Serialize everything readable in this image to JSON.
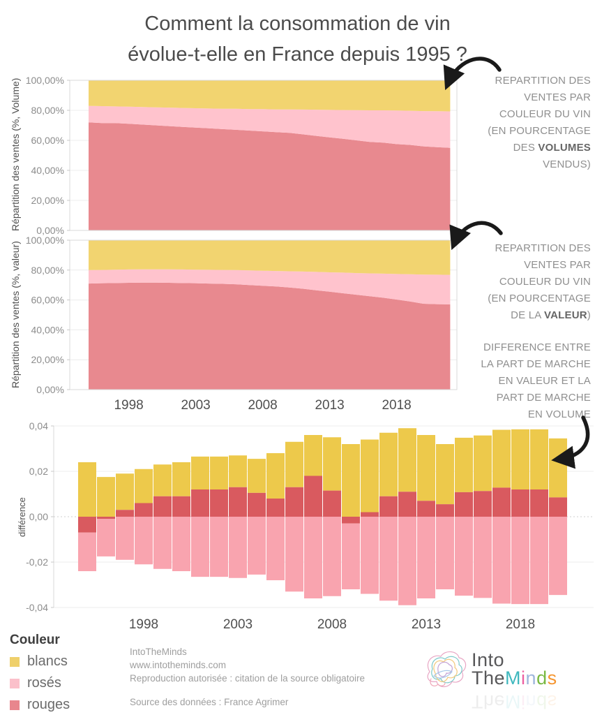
{
  "title": {
    "line1": "Comment la consommation de vin",
    "line2": "évolue-t-elle en France depuis 1995 ?"
  },
  "annotations": {
    "volume": {
      "l1": "REPARTITION DES",
      "l2": "VENTES PAR",
      "l3": "COULEUR DU VIN",
      "l4": "(EN POURCENTAGE",
      "l5_pre": "DES ",
      "l5_bold": "VOLUMES",
      "l6": "VENDUS)"
    },
    "valeur": {
      "l1": "REPARTITION DES",
      "l2": "VENTES PAR",
      "l3": "COULEUR DU VIN",
      "l4": "(EN POURCENTAGE",
      "l5_pre": "DE LA ",
      "l5_bold": "VALEUR",
      "l5_post": ")"
    },
    "difference": {
      "l1": "DIFFERENCE ENTRE",
      "l2": "LA PART DE MARCHE",
      "l3": "EN VALEUR ET LA",
      "l4": "PART DE MARCHE",
      "l5": "EN VOLUME"
    }
  },
  "legend": {
    "title": "Couleur",
    "items": [
      {
        "label": "blancs",
        "color": "#EFD06B"
      },
      {
        "label": "rosés",
        "color": "#FBC0CA"
      },
      {
        "label": "rouges",
        "color": "#E8868D"
      }
    ]
  },
  "footer": {
    "line1": "IntoTheMinds",
    "line2": "www.intotheminds.com",
    "line3": "Reproduction autorisée : citation de la source obligatoire",
    "source": "Source des données : France Agrimer"
  },
  "logo": {
    "word1": "Into",
    "word2": "The",
    "letters": [
      {
        "ch": "M",
        "color": "#3FB8BE"
      },
      {
        "ch": "i",
        "color": "#EC5FA1"
      },
      {
        "ch": "n",
        "color": "#9FB6DC"
      },
      {
        "ch": "d",
        "color": "#79B943"
      },
      {
        "ch": "s",
        "color": "#F5952F"
      }
    ]
  },
  "chart_data": [
    {
      "id": "volume",
      "type": "area",
      "ylabel": "Répartition des ventes (%, Volume)",
      "ylim": [
        0,
        100
      ],
      "unit": "percent of volumes sold",
      "yticks": [
        "100,00%",
        "80,00%",
        "60,00%",
        "40,00%",
        "20,00%",
        "0,00%"
      ],
      "ytick_values": [
        100,
        80,
        60,
        40,
        20,
        0
      ],
      "xticks": [
        1998,
        2003,
        2008,
        2013,
        2018
      ],
      "years": [
        1995,
        1996,
        1997,
        1998,
        1999,
        2000,
        2001,
        2002,
        2003,
        2004,
        2005,
        2006,
        2007,
        2008,
        2009,
        2010,
        2011,
        2012,
        2013,
        2014,
        2015,
        2016,
        2017,
        2018,
        2019,
        2020,
        2021,
        2022
      ],
      "series": [
        {
          "name": "rouges",
          "color": "#E8898F",
          "values": [
            72,
            71.5,
            71.5,
            71,
            70.5,
            70,
            69.5,
            69,
            68.5,
            68,
            67.5,
            67,
            66.5,
            66,
            65.5,
            65,
            64,
            63,
            62,
            61,
            60,
            59,
            58.5,
            57.5,
            57,
            56,
            55.5,
            55
          ]
        },
        {
          "name": "rosés",
          "color": "#FFC3CD",
          "values": [
            11,
            11.3,
            11.1,
            11.4,
            11.7,
            12,
            12.3,
            12.6,
            12.9,
            13.2,
            13.5,
            14,
            14.3,
            14.8,
            15.1,
            15.6,
            16.5,
            17.4,
            18.3,
            19.2,
            20.1,
            21,
            21.5,
            22.4,
            22.7,
            23.5,
            23.9,
            24.3
          ]
        },
        {
          "name": "blancs",
          "color": "#F2D470",
          "values": [
            17,
            17.2,
            17.4,
            17.6,
            17.8,
            18,
            18.2,
            18.4,
            18.6,
            18.8,
            19,
            19,
            19.2,
            19.2,
            19.4,
            19.4,
            19.5,
            19.6,
            19.7,
            19.8,
            19.9,
            20,
            20,
            20.1,
            20.3,
            20.5,
            20.6,
            20.7
          ]
        }
      ]
    },
    {
      "id": "valeur",
      "type": "area",
      "ylabel": "Répartition des ventes (%, valeur)",
      "ylim": [
        0,
        100
      ],
      "unit": "percent of value",
      "yticks": [
        "100,00%",
        "80,00%",
        "60,00%",
        "40,00%",
        "20,00%",
        "0,00%"
      ],
      "ytick_values": [
        100,
        80,
        60,
        40,
        20,
        0
      ],
      "xticks": [
        1998,
        2003,
        2008,
        2013,
        2018
      ],
      "years": [
        1995,
        1996,
        1997,
        1998,
        1999,
        2000,
        2001,
        2002,
        2003,
        2004,
        2005,
        2006,
        2007,
        2008,
        2009,
        2010,
        2011,
        2012,
        2013,
        2014,
        2015,
        2016,
        2017,
        2018,
        2019,
        2020,
        2021,
        2022
      ],
      "series": [
        {
          "name": "rouges",
          "color": "#E8898F",
          "values": [
            71,
            71.2,
            71.3,
            71.5,
            71.6,
            71.6,
            71.5,
            71.3,
            71.2,
            71,
            70.8,
            70.5,
            70,
            69.5,
            69,
            68.3,
            67.5,
            66.5,
            65.5,
            64.5,
            63.5,
            62.5,
            61.5,
            60.3,
            59,
            57.5,
            57.2,
            57
          ]
        },
        {
          "name": "rosés",
          "color": "#FFC3CD",
          "values": [
            9,
            8.9,
            9,
            8.9,
            8.9,
            8.9,
            9,
            9.1,
            9.1,
            9.2,
            9.3,
            9.5,
            9.8,
            10.1,
            10.4,
            10.9,
            11.5,
            12.3,
            13,
            13.8,
            14.5,
            15.3,
            16.1,
            17.1,
            18.2,
            19.5,
            19.7,
            19.8
          ]
        },
        {
          "name": "blancs",
          "color": "#F2D470",
          "values": [
            20,
            19.9,
            19.7,
            19.6,
            19.5,
            19.5,
            19.5,
            19.6,
            19.7,
            19.8,
            19.9,
            20,
            20.2,
            20.4,
            20.6,
            20.8,
            21,
            21.2,
            21.5,
            21.7,
            22,
            22.2,
            22.4,
            22.6,
            22.8,
            23,
            23.1,
            23.2
          ]
        }
      ]
    },
    {
      "id": "difference",
      "type": "bar",
      "ylabel": "différence",
      "ylim": [
        -0.04,
        0.04
      ],
      "unit": "value share minus volume share",
      "yticks": [
        "0,04",
        "0,02",
        "0,00",
        "-0,02",
        "-0,04"
      ],
      "ytick_values": [
        0.04,
        0.02,
        0,
        -0.02,
        -0.04
      ],
      "xticks": [
        1998,
        2003,
        2008,
        2013,
        2018
      ],
      "years": [
        1995,
        1996,
        1997,
        1998,
        1999,
        2000,
        2001,
        2002,
        2003,
        2004,
        2005,
        2006,
        2007,
        2008,
        2009,
        2010,
        2011,
        2012,
        2013,
        2014,
        2015,
        2016,
        2017,
        2018,
        2019,
        2020
      ],
      "series": [
        {
          "name": "blancs",
          "color": "#EDC94B",
          "values": [
            0.024,
            0.0175,
            0.016,
            0.015,
            0.014,
            0.015,
            0.0145,
            0.0145,
            0.014,
            0.015,
            0.02,
            0.02,
            0.018,
            0.0235,
            0.032,
            0.032,
            0.028,
            0.028,
            0.029,
            0.0265,
            0.024,
            0.0245,
            0.0255,
            0.0265,
            0.0265,
            0.026
          ]
        },
        {
          "name": "rouges",
          "color": "#D95A5F",
          "values": [
            -0.007,
            -0.001,
            0.003,
            0.006,
            0.009,
            0.009,
            0.012,
            0.012,
            0.013,
            0.0105,
            0.008,
            0.013,
            0.018,
            0.0115,
            -0.003,
            0.002,
            0.009,
            0.011,
            0.007,
            0.0055,
            0.0108,
            0.0113,
            0.0128,
            0.012,
            0.012,
            0.0085
          ]
        },
        {
          "name": "rosés",
          "color": "#F9A4AF",
          "values": [
            -0.017,
            -0.0165,
            -0.019,
            -0.021,
            -0.023,
            -0.024,
            -0.0265,
            -0.0265,
            -0.027,
            -0.0255,
            -0.028,
            -0.033,
            -0.036,
            -0.035,
            -0.029,
            -0.034,
            -0.037,
            -0.039,
            -0.036,
            -0.032,
            -0.0348,
            -0.0358,
            -0.0383,
            -0.0385,
            -0.0385,
            -0.0345
          ]
        }
      ]
    }
  ]
}
